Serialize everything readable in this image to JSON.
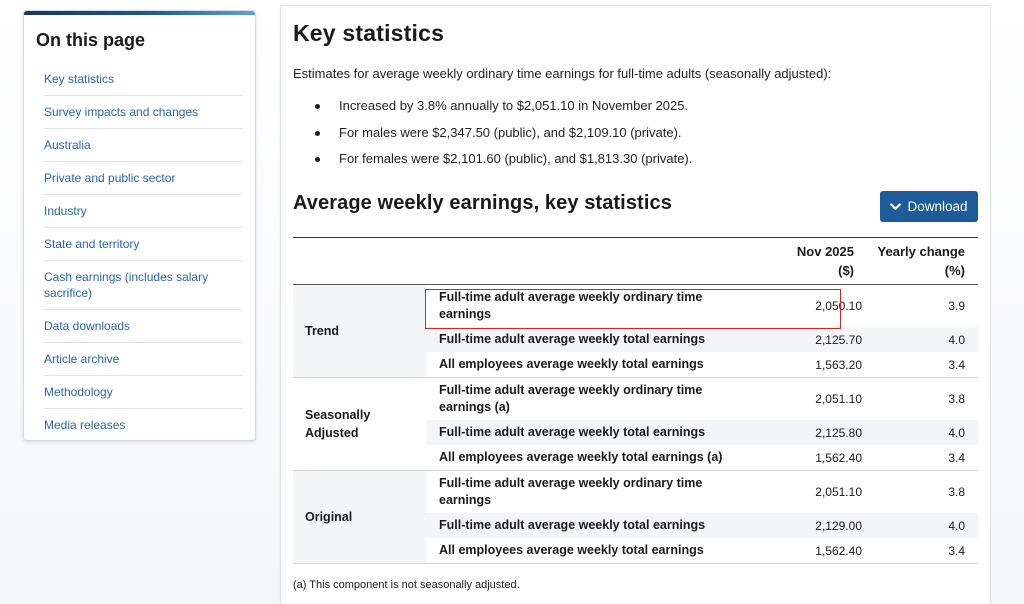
{
  "sidebar": {
    "title": "On this page",
    "items": [
      "Key statistics",
      "Survey impacts and changes",
      "Australia",
      "Private and public sector",
      "Industry",
      "State and territory",
      "Cash earnings (includes salary sacrifice)",
      "Data downloads",
      "Article archive",
      "Methodology",
      "Media releases"
    ]
  },
  "main": {
    "title": "Key statistics",
    "intro": "Estimates for average weekly ordinary time earnings for full-time adults (seasonally adjusted):",
    "bullets": [
      "Increased by 3.8% annually to $2,051.10 in November 2025.",
      "For males were $2,347.50 (public), and $2,109.10 (private).",
      "For females were $2,101.60 (public), and $1,813.30 (private)."
    ],
    "table_title": "Average weekly earnings, key statistics",
    "download_label": "Download",
    "table": {
      "headers": {
        "col1_line1": "Nov 2025",
        "col1_line2": "($)",
        "col2_line1": "Yearly change",
        "col2_line2": "(%)"
      },
      "groups": [
        {
          "label": "Trend",
          "rows": [
            {
              "desc": "Full-time adult average weekly ordinary time earnings",
              "value": "2,050.10",
              "change": "3.9"
            },
            {
              "desc": "Full-time adult average weekly total earnings",
              "value": "2,125.70",
              "change": "4.0"
            },
            {
              "desc": "All employees average weekly total earnings",
              "value": "1,563.20",
              "change": "3.4"
            }
          ]
        },
        {
          "label": "Seasonally Adjusted",
          "rows": [
            {
              "desc": "Full-time adult average weekly ordinary time earnings (a)",
              "value": "2,051.10",
              "change": "3.8"
            },
            {
              "desc": "Full-time adult average weekly total earnings",
              "value": "2,125.80",
              "change": "4.0"
            },
            {
              "desc": "All employees average weekly total earnings (a)",
              "value": "1,562.40",
              "change": "3.4"
            }
          ]
        },
        {
          "label": "Original",
          "rows": [
            {
              "desc": "Full-time adult average weekly ordinary time earnings",
              "value": "2,051.10",
              "change": "3.8"
            },
            {
              "desc": "Full-time adult average weekly total earnings",
              "value": "2,129.00",
              "change": "4.0"
            },
            {
              "desc": "All employees average weekly total earnings",
              "value": "1,562.40",
              "change": "3.4"
            }
          ]
        }
      ]
    },
    "footnote": "(a) This component is not seasonally adjusted."
  },
  "icons": {
    "download": "chevron-down-icon"
  },
  "colors": {
    "link": "#2a66a8",
    "button": "#1d5c99",
    "highlight": "#e01e1e"
  }
}
